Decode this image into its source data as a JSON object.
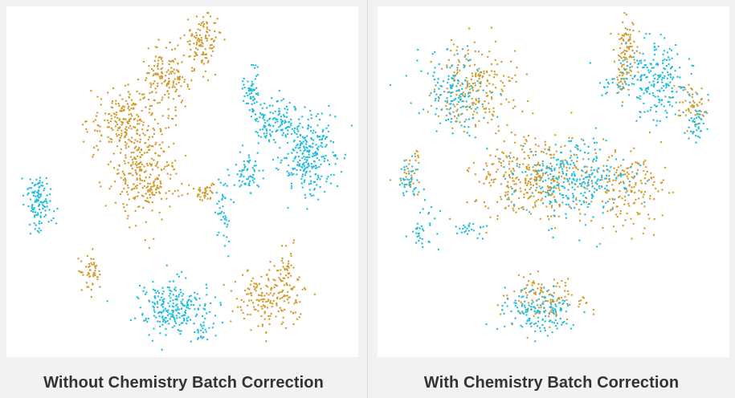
{
  "colors": {
    "batch_a": "#d39a2c",
    "batch_b": "#1fbde0"
  },
  "chart_data": [
    {
      "type": "scatter",
      "title": "Without Chemistry Batch Correction",
      "xlim": [
        0,
        100
      ],
      "ylim": [
        0,
        100
      ],
      "grid": false,
      "legend": "none",
      "series": [
        {
          "color": "#d39a2c",
          "clusters": [
            {
              "cx": 56,
              "cy": 91,
              "sx": 3.2,
              "sy": 5.0,
              "n": 120
            },
            {
              "cx": 45,
              "cy": 80,
              "sx": 4.2,
              "sy": 5.0,
              "n": 150
            },
            {
              "cx": 34,
              "cy": 68,
              "sx": 6.5,
              "sy": 5.5,
              "n": 220
            },
            {
              "cx": 39,
              "cy": 52,
              "sx": 6.0,
              "sy": 7.5,
              "n": 260
            },
            {
              "cx": 57,
              "cy": 47,
              "sx": 2.0,
              "sy": 1.5,
              "n": 40
            },
            {
              "cx": 23,
              "cy": 23,
              "sx": 1.6,
              "sy": 3.2,
              "n": 50
            },
            {
              "cx": 76,
              "cy": 16,
              "sx": 6.0,
              "sy": 5.0,
              "n": 180
            },
            {
              "cx": 81,
              "cy": 24,
              "sx": 1.8,
              "sy": 4.0,
              "n": 40
            }
          ]
        },
        {
          "color": "#1fbde0",
          "clusters": [
            {
              "cx": 8,
              "cy": 44,
              "sx": 2.5,
              "sy": 4.8,
              "n": 120
            },
            {
              "cx": 70,
              "cy": 77,
              "sx": 1.5,
              "sy": 5.0,
              "n": 60
            },
            {
              "cx": 77,
              "cy": 68,
              "sx": 4.0,
              "sy": 4.0,
              "n": 120
            },
            {
              "cx": 87,
              "cy": 58,
              "sx": 5.0,
              "sy": 7.0,
              "n": 280
            },
            {
              "cx": 69,
              "cy": 52,
              "sx": 2.5,
              "sy": 3.5,
              "n": 60
            },
            {
              "cx": 62,
              "cy": 43,
              "sx": 1.2,
              "sy": 6.5,
              "n": 45
            },
            {
              "cx": 47,
              "cy": 13,
              "sx": 6.0,
              "sy": 4.5,
              "n": 240
            },
            {
              "cx": 56,
              "cy": 6,
              "sx": 1.2,
              "sy": 2.0,
              "n": 20
            }
          ]
        }
      ]
    },
    {
      "type": "scatter",
      "title": "With Chemistry Batch Correction",
      "xlim": [
        0,
        100
      ],
      "ylim": [
        0,
        100
      ],
      "grid": false,
      "legend": "none",
      "series": [
        {
          "color": "#d39a2c",
          "clusters": [
            {
              "cx": 28,
              "cy": 77,
              "sx": 7.0,
              "sy": 8.0,
              "n": 210
            },
            {
              "cx": 44,
              "cy": 51,
              "sx": 10.0,
              "sy": 7.0,
              "n": 340
            },
            {
              "cx": 72,
              "cy": 48,
              "sx": 6.0,
              "sy": 6.5,
              "n": 170
            },
            {
              "cx": 70,
              "cy": 79,
              "sx": 1.0,
              "sy": 1.5,
              "n": 12
            },
            {
              "cx": 71,
              "cy": 88,
              "sx": 2.0,
              "sy": 6.0,
              "n": 100
            },
            {
              "cx": 90,
              "cy": 72,
              "sx": 3.0,
              "sy": 3.5,
              "n": 50
            },
            {
              "cx": 47,
              "cy": 15,
              "sx": 7.0,
              "sy": 4.5,
              "n": 120
            },
            {
              "cx": 8,
              "cy": 51,
              "sx": 2.0,
              "sy": 2.5,
              "n": 25
            },
            {
              "cx": 10,
              "cy": 58,
              "sx": 1.0,
              "sy": 1.5,
              "n": 8
            }
          ]
        },
        {
          "color": "#1fbde0",
          "clusters": [
            {
              "cx": 21,
              "cy": 76,
              "sx": 5.5,
              "sy": 7.0,
              "n": 150
            },
            {
              "cx": 56,
              "cy": 51,
              "sx": 10.0,
              "sy": 7.0,
              "n": 300
            },
            {
              "cx": 80,
              "cy": 80,
              "sx": 6.5,
              "sy": 7.0,
              "n": 220
            },
            {
              "cx": 92,
              "cy": 67,
              "sx": 1.5,
              "sy": 3.0,
              "n": 40
            },
            {
              "cx": 8,
              "cy": 50,
              "sx": 2.0,
              "sy": 3.5,
              "n": 40
            },
            {
              "cx": 12,
              "cy": 36,
              "sx": 2.5,
              "sy": 5.0,
              "n": 35
            },
            {
              "cx": 25,
              "cy": 36,
              "sx": 3.0,
              "sy": 1.5,
              "n": 25
            },
            {
              "cx": 45,
              "cy": 12,
              "sx": 6.0,
              "sy": 4.0,
              "n": 150
            },
            {
              "cx": 67,
              "cy": 78,
              "sx": 3.0,
              "sy": 2.0,
              "n": 20
            }
          ]
        }
      ]
    }
  ]
}
